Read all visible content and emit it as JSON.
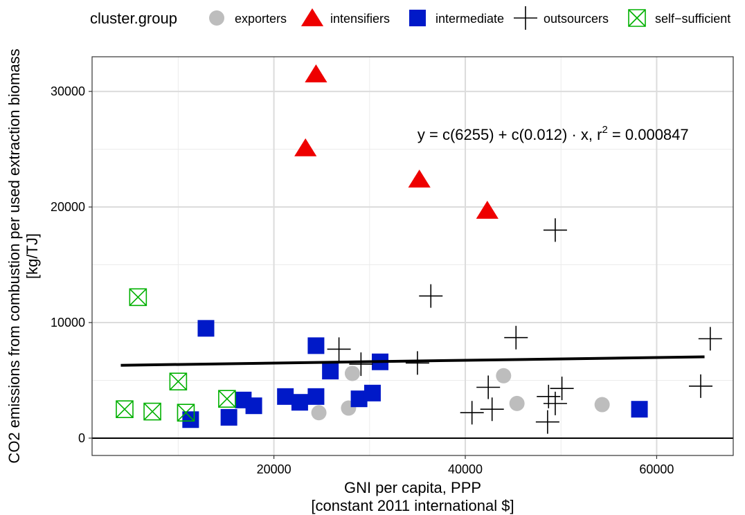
{
  "chart_data": {
    "type": "scatter",
    "legend": {
      "title": "cluster.group",
      "placement": "top",
      "entries": [
        {
          "name": "exporters",
          "shape": "circle",
          "color": "#bdbdbd"
        },
        {
          "name": "intensifiers",
          "shape": "triangle",
          "color": "#ee0000"
        },
        {
          "name": "intermediate",
          "shape": "square",
          "color": "#0019c8"
        },
        {
          "name": "outsourcers",
          "shape": "plus",
          "color": "#000000"
        },
        {
          "name": "self−sufficient",
          "shape": "boxx",
          "color": "#00b000"
        }
      ]
    },
    "xlabel_lines": [
      "GNI per capita, PPP",
      "[constant 2011 international $]"
    ],
    "ylabel_lines": [
      "CO2 emissions from combustion per used extraction biomass",
      "[kg/TJ]"
    ],
    "xlim": [
      1000,
      68000
    ],
    "ylim": [
      -1500,
      33000
    ],
    "xticks": [
      20000,
      40000,
      60000
    ],
    "yticks": [
      0,
      10000,
      20000,
      30000
    ],
    "grid": true,
    "annotation": {
      "prefix": "y = c(6255) + c(0.012) · x,  r",
      "sup": "2",
      "suffix": " = 0.000847",
      "x": 35000,
      "y": 25800
    },
    "regression": {
      "intercept": 6255,
      "slope": 0.012,
      "x_range": [
        4000,
        65000
      ]
    },
    "hline": 0,
    "series": [
      {
        "name": "exporters",
        "points": [
          [
            24700,
            2200
          ],
          [
            27800,
            2600
          ],
          [
            28200,
            5600
          ],
          [
            44000,
            5400
          ],
          [
            45400,
            3000
          ],
          [
            54300,
            2900
          ]
        ]
      },
      {
        "name": "intensifiers",
        "points": [
          [
            24400,
            31500
          ],
          [
            23300,
            25100
          ],
          [
            35200,
            22400
          ],
          [
            42300,
            19700
          ]
        ]
      },
      {
        "name": "intermediate",
        "points": [
          [
            12900,
            9500
          ],
          [
            11300,
            1600
          ],
          [
            15300,
            1800
          ],
          [
            16800,
            3300
          ],
          [
            17900,
            2800
          ],
          [
            21200,
            3600
          ],
          [
            22700,
            3100
          ],
          [
            24400,
            3600
          ],
          [
            24400,
            8000
          ],
          [
            25900,
            5800
          ],
          [
            28900,
            3400
          ],
          [
            30300,
            3900
          ],
          [
            31100,
            6600
          ],
          [
            58200,
            2500
          ]
        ]
      },
      {
        "name": "outsourcers",
        "points": [
          [
            26800,
            7700
          ],
          [
            29100,
            6400
          ],
          [
            35000,
            6500
          ],
          [
            36400,
            12300
          ],
          [
            40700,
            2200
          ],
          [
            42400,
            4400
          ],
          [
            42800,
            2500
          ],
          [
            45300,
            8700
          ],
          [
            48700,
            3600
          ],
          [
            48600,
            1400
          ],
          [
            49400,
            3000
          ],
          [
            50100,
            4300
          ],
          [
            49400,
            18000
          ],
          [
            64600,
            4500
          ],
          [
            65600,
            8600
          ]
        ]
      },
      {
        "name": "self−sufficient",
        "points": [
          [
            4400,
            2500
          ],
          [
            5800,
            12200
          ],
          [
            7300,
            2300
          ],
          [
            10000,
            4900
          ],
          [
            10800,
            2200
          ],
          [
            15100,
            3400
          ]
        ]
      }
    ]
  }
}
